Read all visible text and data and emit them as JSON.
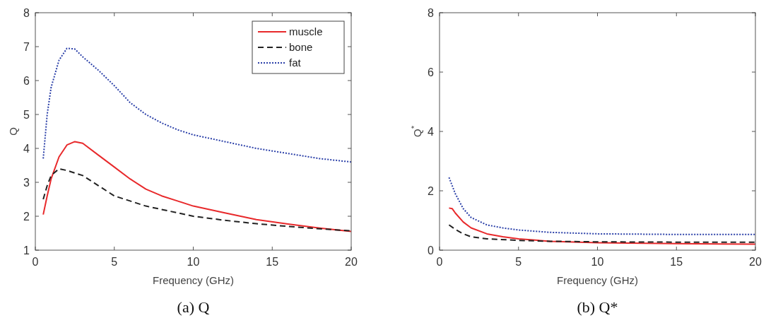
{
  "chart_data": [
    {
      "type": "line",
      "title": "(a) Q",
      "xlabel": "Frequency (GHz)",
      "ylabel": "Q",
      "xlim": [
        0,
        20
      ],
      "ylim": [
        1,
        8
      ],
      "xticks": [
        0,
        5,
        10,
        15,
        20
      ],
      "yticks": [
        1,
        2,
        3,
        4,
        5,
        6,
        7,
        8
      ],
      "legend": "top right",
      "grid": false,
      "series": [
        {
          "name": "muscle",
          "color": "#e8292b",
          "line_style": "solid",
          "x": [
            0.5,
            0.75,
            1,
            1.5,
            2,
            2.5,
            3,
            4,
            5,
            6,
            7,
            8,
            9,
            10,
            12,
            14,
            16,
            18,
            20
          ],
          "values": [
            2.05,
            2.6,
            3.1,
            3.75,
            4.1,
            4.2,
            4.15,
            3.8,
            3.45,
            3.1,
            2.8,
            2.6,
            2.45,
            2.3,
            2.1,
            1.9,
            1.77,
            1.65,
            1.55
          ]
        },
        {
          "name": "bone",
          "color": "#222222",
          "line_style": "dashed",
          "x": [
            0.5,
            0.75,
            1,
            1.5,
            2,
            3,
            4,
            5,
            6,
            7,
            8,
            10,
            12,
            14,
            16,
            18,
            20
          ],
          "values": [
            2.5,
            2.9,
            3.2,
            3.4,
            3.35,
            3.2,
            2.9,
            2.6,
            2.45,
            2.3,
            2.2,
            2.0,
            1.88,
            1.78,
            1.7,
            1.63,
            1.57
          ]
        },
        {
          "name": "fat",
          "color": "#2a3fa8",
          "line_style": "dotted",
          "x": [
            0.5,
            0.75,
            1,
            1.5,
            2,
            2.5,
            3,
            4,
            5,
            6,
            7,
            8,
            9,
            10,
            12,
            14,
            16,
            18,
            20
          ],
          "values": [
            3.7,
            5.0,
            5.8,
            6.6,
            6.95,
            6.93,
            6.7,
            6.3,
            5.85,
            5.35,
            5.0,
            4.75,
            4.55,
            4.4,
            4.2,
            4.0,
            3.85,
            3.7,
            3.6
          ]
        }
      ]
    },
    {
      "type": "line",
      "title": "(b) Q*",
      "xlabel": "Frequency (GHz)",
      "ylabel": "Q$^{*}$",
      "xlim": [
        0,
        20
      ],
      "ylim": [
        0,
        8
      ],
      "xticks": [
        0,
        5,
        10,
        15,
        20
      ],
      "yticks": [
        0,
        2,
        4,
        6,
        8
      ],
      "legend": false,
      "grid": false,
      "series": [
        {
          "color": "#e8292b",
          "line_style": "solid",
          "x": [
            0.6,
            0.8,
            1,
            1.5,
            2,
            3,
            4,
            5,
            7,
            10,
            15,
            20
          ],
          "values": [
            1.42,
            1.4,
            1.25,
            0.95,
            0.75,
            0.55,
            0.45,
            0.38,
            0.3,
            0.25,
            0.22,
            0.2
          ]
        },
        {
          "color": "#222222",
          "line_style": "dashed",
          "x": [
            0.6,
            1,
            1.5,
            2,
            3,
            5,
            7,
            10,
            15,
            20
          ],
          "values": [
            0.85,
            0.7,
            0.55,
            0.45,
            0.38,
            0.33,
            0.3,
            0.28,
            0.27,
            0.27
          ]
        },
        {
          "color": "#2a3fa8",
          "line_style": "dotted",
          "x": [
            0.6,
            1,
            1.5,
            2,
            3,
            4,
            5,
            7,
            10,
            15,
            20
          ],
          "values": [
            2.45,
            1.9,
            1.4,
            1.1,
            0.85,
            0.75,
            0.68,
            0.6,
            0.55,
            0.53,
            0.53
          ]
        }
      ]
    }
  ]
}
